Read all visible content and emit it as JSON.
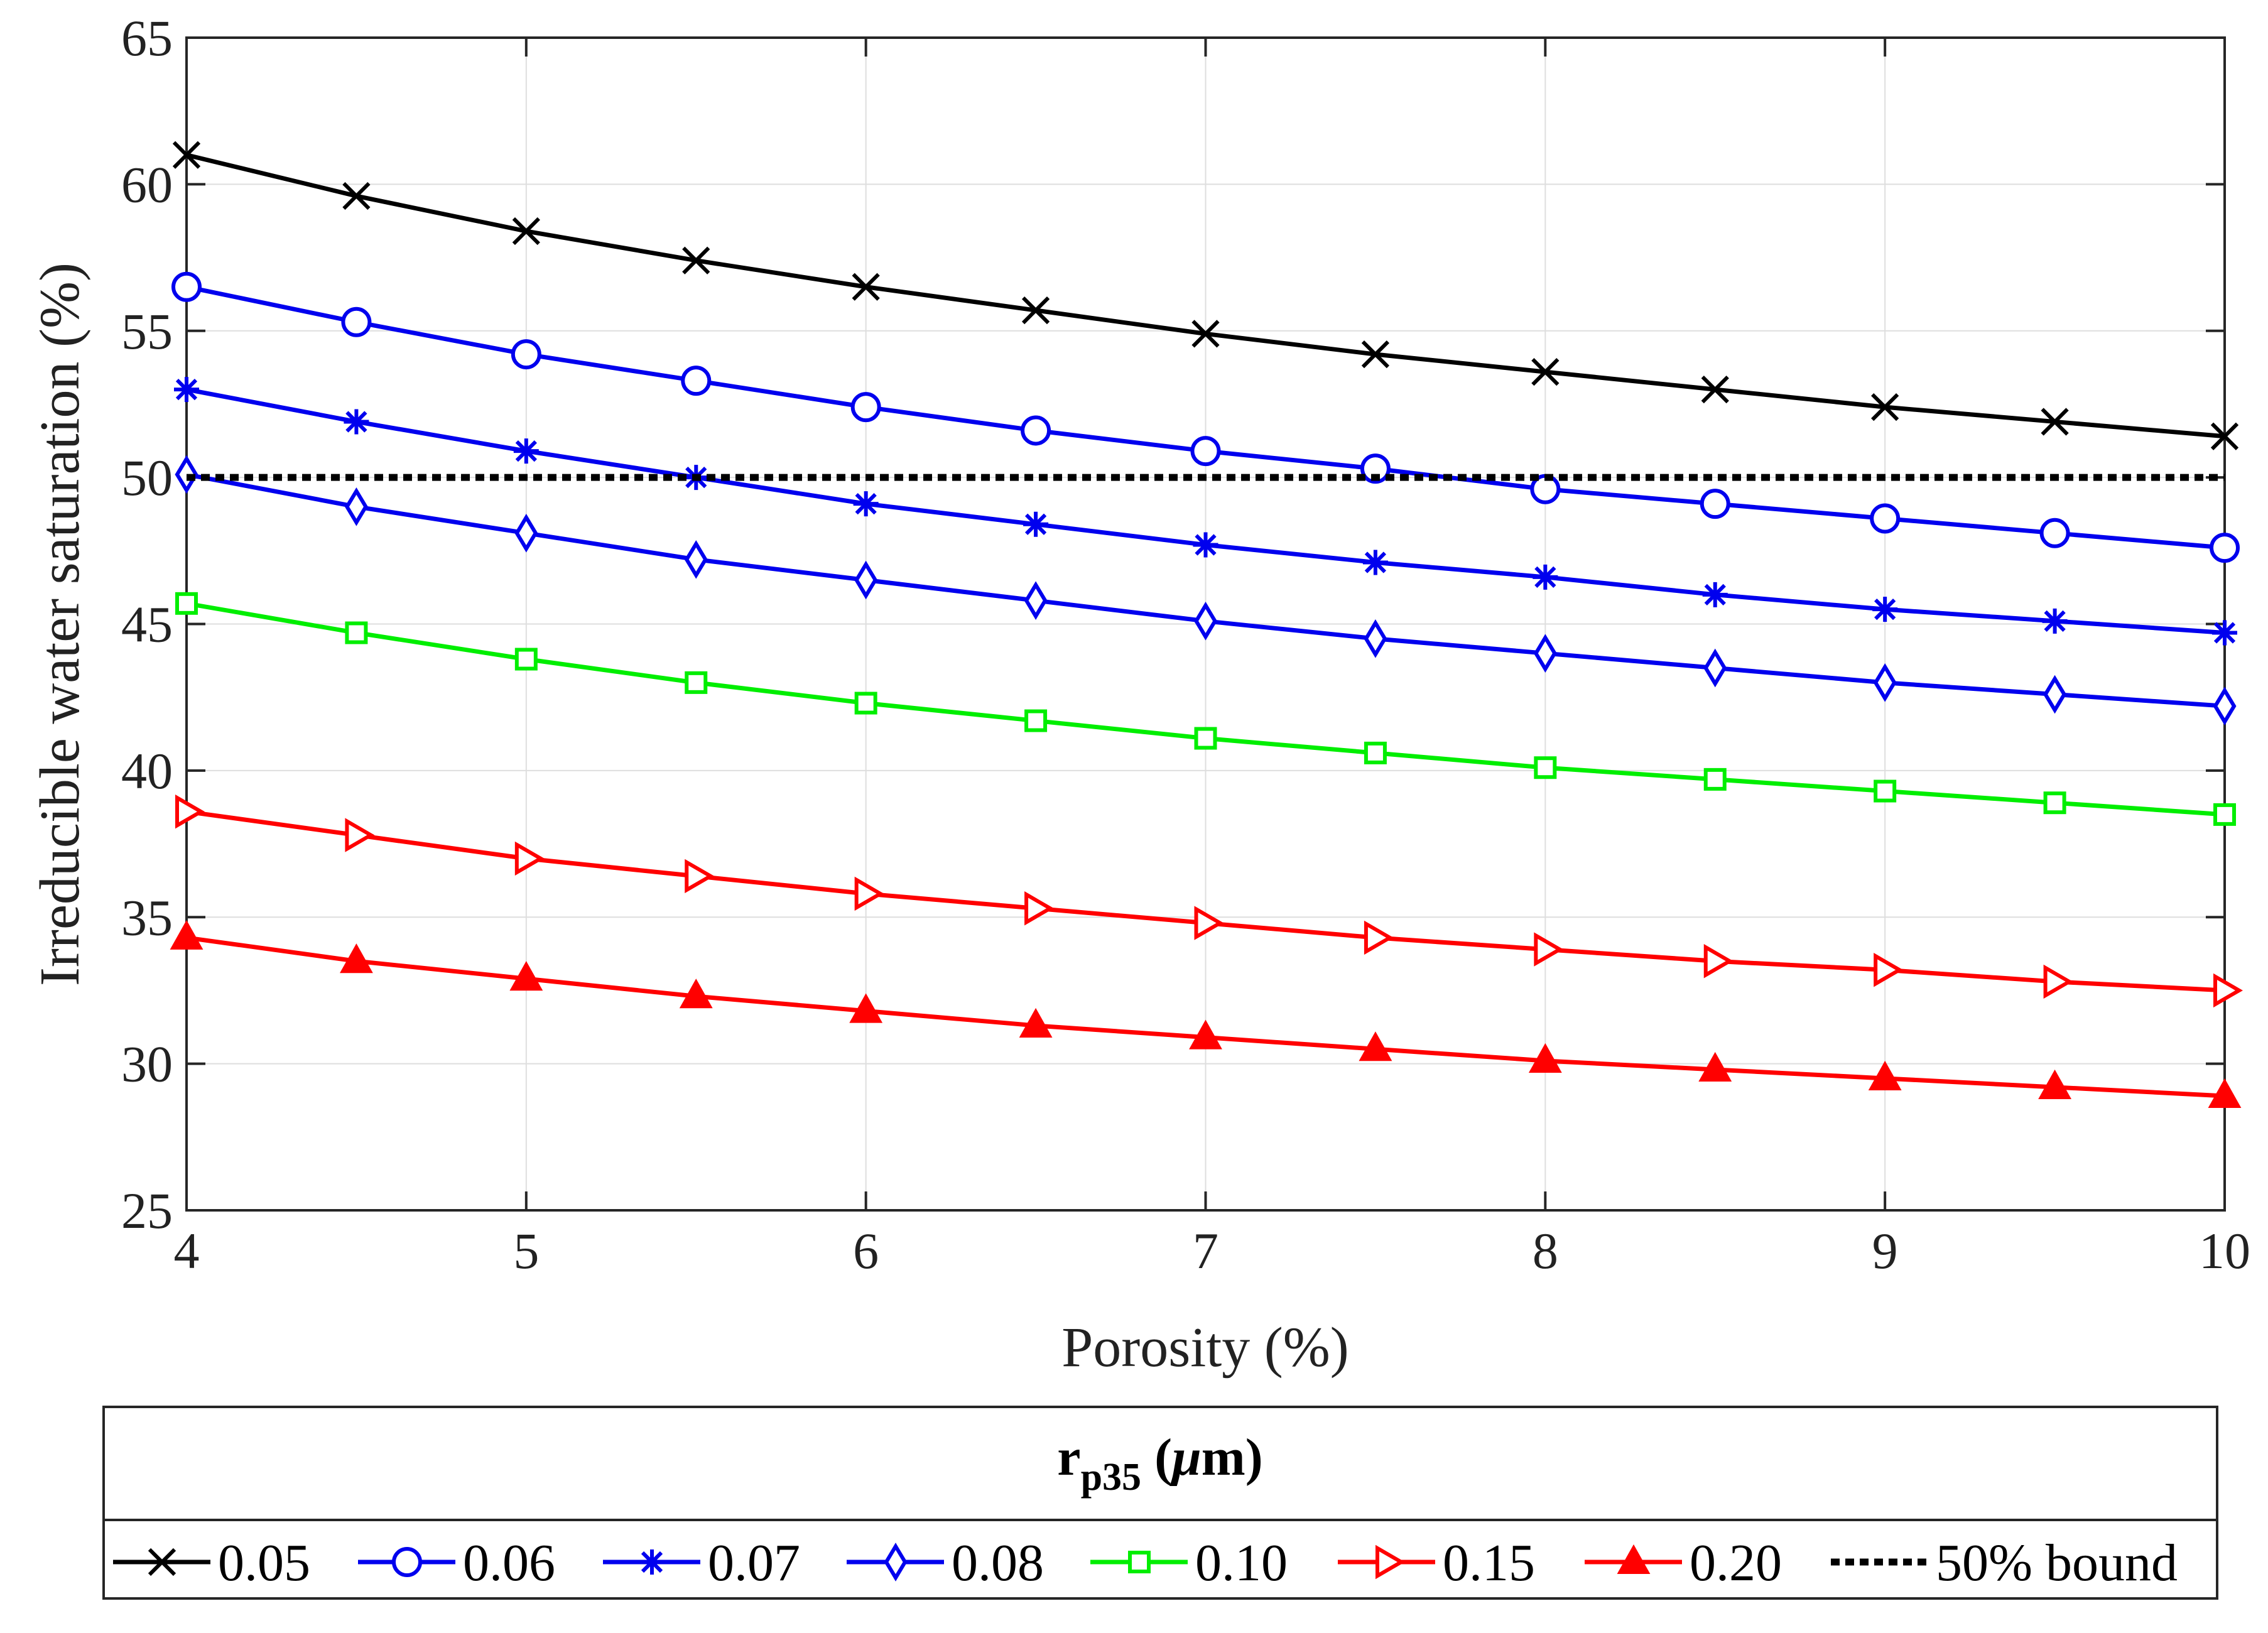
{
  "chart_data": {
    "type": "line",
    "xlabel": "Porosity (%)",
    "ylabel": "Irreducible water saturation (%)",
    "xlim": [
      4,
      10
    ],
    "ylim": [
      25,
      65
    ],
    "xticks": [
      4,
      5,
      6,
      7,
      8,
      9,
      10
    ],
    "yticks": [
      25,
      30,
      35,
      40,
      45,
      50,
      55,
      60,
      65
    ],
    "grid": true,
    "legend": {
      "placement": "bottom",
      "title_main": "r",
      "title_sub": "p35",
      "title_unit": " (",
      "title_mu": "μ",
      "title_unit_end": "m)"
    },
    "x": [
      4,
      4.5,
      5,
      5.5,
      6,
      6.5,
      7,
      7.5,
      8,
      8.5,
      9,
      9.5,
      10
    ],
    "series": [
      {
        "name": "0.05",
        "color": "#000000",
        "marker": "x",
        "values": [
          61.0,
          59.6,
          58.4,
          57.4,
          56.5,
          55.7,
          54.9,
          54.2,
          53.6,
          53.0,
          52.4,
          51.9,
          51.4
        ]
      },
      {
        "name": "0.06",
        "color": "#0000ee",
        "marker": "circle",
        "values": [
          56.5,
          55.3,
          54.2,
          53.3,
          52.4,
          51.6,
          50.9,
          50.3,
          49.6,
          49.1,
          48.6,
          48.1,
          47.6
        ]
      },
      {
        "name": "0.07",
        "color": "#0000ee",
        "marker": "asterisk",
        "values": [
          53.0,
          51.9,
          50.9,
          50.0,
          49.1,
          48.4,
          47.7,
          47.1,
          46.6,
          46.0,
          45.5,
          45.1,
          44.7
        ]
      },
      {
        "name": "0.08",
        "color": "#0000ee",
        "marker": "diamond",
        "values": [
          50.1,
          49.0,
          48.1,
          47.2,
          46.5,
          45.8,
          45.1,
          44.5,
          44.0,
          43.5,
          43.0,
          42.6,
          42.2
        ]
      },
      {
        "name": "0.10",
        "color": "#00ee00",
        "marker": "square",
        "values": [
          45.7,
          44.7,
          43.8,
          43.0,
          42.3,
          41.7,
          41.1,
          40.6,
          40.1,
          39.7,
          39.3,
          38.9,
          38.5
        ]
      },
      {
        "name": "0.15",
        "color": "#ff0000",
        "marker": "triangle-right",
        "values": [
          38.6,
          37.8,
          37.0,
          36.4,
          35.8,
          35.3,
          34.8,
          34.3,
          33.9,
          33.5,
          33.2,
          32.8,
          32.5
        ]
      },
      {
        "name": "0.20",
        "color": "#ff0000",
        "marker": "triangle-up",
        "values": [
          34.3,
          33.5,
          32.9,
          32.3,
          31.8,
          31.3,
          30.9,
          30.5,
          30.1,
          29.8,
          29.5,
          29.2,
          28.9
        ]
      },
      {
        "name": "50% bound",
        "color": "#000000",
        "marker": "none",
        "dashed": true,
        "values": [
          50,
          50,
          50,
          50,
          50,
          50,
          50,
          50,
          50,
          50,
          50,
          50,
          50
        ]
      }
    ]
  }
}
